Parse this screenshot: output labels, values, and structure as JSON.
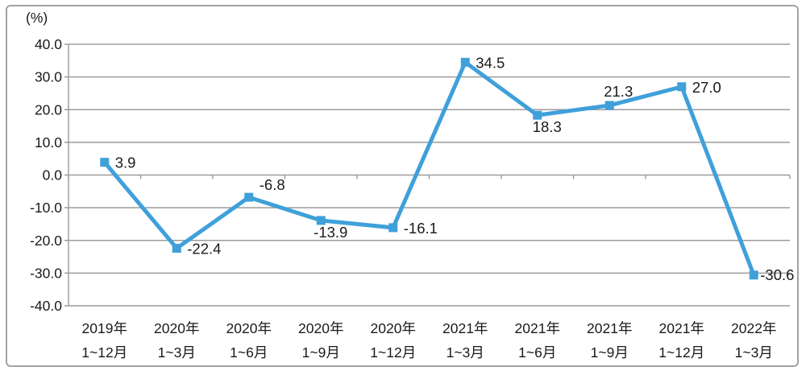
{
  "chart_data": {
    "type": "line",
    "title": "",
    "unit_label": "(%)",
    "xlabel": "",
    "ylabel": "(%)",
    "categories": [
      [
        "2019年",
        "1~12月"
      ],
      [
        "2020年",
        "1~3月"
      ],
      [
        "2020年",
        "1~6月"
      ],
      [
        "2020年",
        "1~9月"
      ],
      [
        "2020年",
        "1~12月"
      ],
      [
        "2021年",
        "1~3月"
      ],
      [
        "2021年",
        "1~6月"
      ],
      [
        "2021年",
        "1~9月"
      ],
      [
        "2021年",
        "1~12月"
      ],
      [
        "2022年",
        "1~3月"
      ]
    ],
    "values": [
      3.9,
      -22.4,
      -6.8,
      -13.9,
      -16.1,
      34.5,
      18.3,
      21.3,
      27.0,
      -30.6
    ],
    "value_labels": [
      "3.9",
      "-22.4",
      "-6.8",
      "-13.9",
      "-16.1",
      "34.5",
      "18.3",
      "21.3",
      "27.0",
      "-30.6"
    ],
    "label_placements": [
      "right",
      "right",
      "above-right",
      "below",
      "right",
      "right",
      "below",
      "above",
      "right",
      "right-tight"
    ],
    "yticks": [
      "40.0",
      "30.0",
      "20.0",
      "10.0",
      "0.0",
      "-10.0",
      "-20.0",
      "-30.0",
      "-40.0"
    ],
    "ylim": [
      -40,
      40
    ],
    "ytick_step": 10,
    "grid": true,
    "legend": "none",
    "marker": "square",
    "colors": {
      "line": "#3fa0da",
      "marker": "#3fa0da",
      "grid": "#9b9b9b",
      "axis": "#9b9b9b",
      "text": "#1a1a1a",
      "border": "#a3a3a3",
      "background": "#ffffff"
    }
  }
}
